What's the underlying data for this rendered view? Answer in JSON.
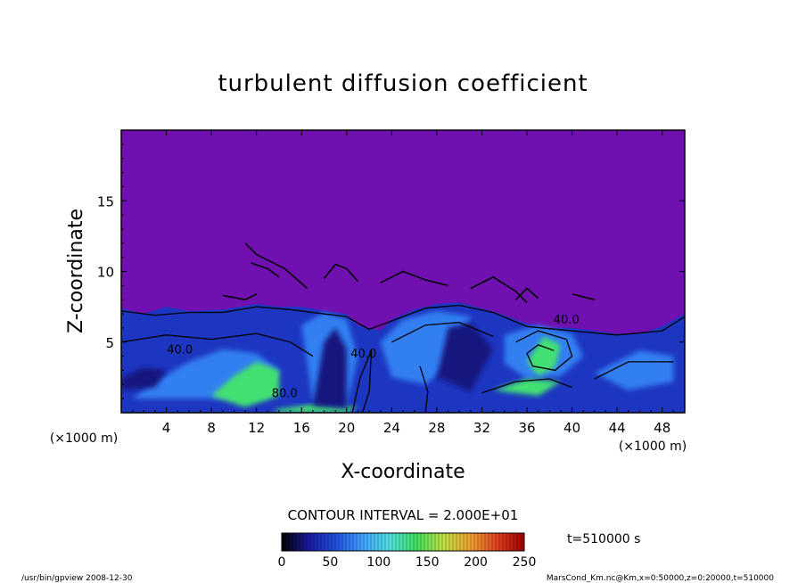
{
  "chart_data": {
    "type": "heatmap",
    "title": "turbulent diffusion coefficient",
    "xlabel": "X-coordinate",
    "ylabel": "Z-coordinate",
    "x_unit": "(×1000 m)",
    "z_unit": "(×1000 m)",
    "xlim": [
      0,
      50
    ],
    "ylim": [
      0,
      20
    ],
    "x_ticks": [
      4,
      8,
      12,
      16,
      20,
      24,
      28,
      32,
      36,
      40,
      44,
      48
    ],
    "y_ticks": [
      5,
      10,
      15
    ],
    "contour_interval": "CONTOUR INTERVAL = 2.000E+01",
    "contour_labels": [
      {
        "text": "40.0",
        "x": 5.2,
        "z": 4.2
      },
      {
        "text": "40.0",
        "x": 21.5,
        "z": 3.9
      },
      {
        "text": "80.0",
        "x": 14.5,
        "z": 1.1
      },
      {
        "text": "40.0",
        "x": 39.5,
        "z": 6.3
      }
    ],
    "colorbar": {
      "min": 0,
      "max": 250,
      "ticks": [
        0,
        50,
        100,
        150,
        200,
        250
      ],
      "colormap": [
        "#000000",
        "#1a1aa0",
        "#2050e0",
        "#40a0ff",
        "#50e0e0",
        "#40e060",
        "#c0e040",
        "#f0a030",
        "#e04020",
        "#a00000"
      ]
    },
    "background_color": "#7010b0",
    "time_label": "t=510000 s"
  },
  "footer": {
    "left": "/usr/bin/gpview   2008-12-30",
    "right": "MarsCond_Km.nc@Km,x=0:50000,z=0:20000,t=510000"
  }
}
